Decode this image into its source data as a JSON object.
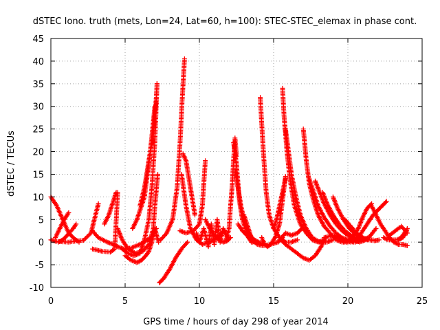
{
  "chart_data": {
    "type": "scatter",
    "title": "dSTEC Iono. truth (mets, Lon=24, Lat=60, h=100): STEC-STEC_elemax in phase cont.",
    "xlabel": "GPS time / hours of day 298 of year 2014",
    "ylabel": "dSTEC  / TECUs",
    "xlim": [
      0,
      25
    ],
    "ylim": [
      -10,
      45
    ],
    "xticks": [
      "0",
      "5",
      "10",
      "15",
      "20",
      "25"
    ],
    "yticks": [
      "-10",
      "-5",
      "0",
      "5",
      "10",
      "15",
      "20",
      "25",
      "30",
      "35",
      "40",
      "45"
    ],
    "grid": true,
    "marker": "+",
    "color": "#ff0000",
    "series": [
      {
        "x": [
          0.0,
          0.3,
          0.7,
          1.2,
          1.6,
          2.2,
          2.7,
          3.2
        ],
        "y": [
          0.5,
          0.2,
          0.1,
          0.0,
          0.2,
          0.4,
          2.0,
          8.5
        ]
      },
      {
        "x": [
          0.0,
          0.4,
          0.8,
          1.2,
          1.5,
          1.9
        ],
        "y": [
          10,
          8,
          5,
          2,
          1,
          0
        ]
      },
      {
        "x": [
          0.3,
          0.6,
          0.9,
          1.2
        ],
        "y": [
          1,
          3,
          5,
          6.5
        ]
      },
      {
        "x": [
          0.5,
          0.8,
          1.1,
          1.5,
          1.7
        ],
        "y": [
          0,
          0.5,
          1.5,
          3,
          4
        ]
      },
      {
        "x": [
          2.8,
          3.2,
          3.8,
          4.2,
          4.5,
          4.9,
          5.4,
          6.0,
          6.5,
          6.9,
          7.1
        ],
        "y": [
          2.5,
          1.0,
          0.0,
          -0.5,
          -1.0,
          -1.5,
          -1.3,
          -0.5,
          0.5,
          1.5,
          3.0
        ]
      },
      {
        "x": [
          2.8,
          3.4,
          4.0,
          4.3,
          4.5
        ],
        "y": [
          -1.5,
          -2.0,
          -2.2,
          -1.5,
          11.0
        ]
      },
      {
        "x": [
          3.6,
          3.9,
          4.1,
          4.3,
          4.4
        ],
        "y": [
          4,
          6,
          8,
          10,
          11
        ]
      },
      {
        "x": [
          4.5,
          4.8,
          5.2,
          5.7,
          6.2,
          6.6,
          6.9,
          7.0,
          7.2
        ],
        "y": [
          3.0,
          0.5,
          -1.5,
          -2.5,
          -2.0,
          -0.5,
          3.0,
          8.0,
          15.0
        ]
      },
      {
        "x": [
          4.8,
          5.2,
          5.6,
          6.0,
          6.3,
          6.6,
          6.8,
          7.0,
          7.15
        ],
        "y": [
          -1.5,
          -2.5,
          -3.0,
          -2.5,
          0.5,
          5.0,
          12.0,
          22.0,
          35.0
        ]
      },
      {
        "x": [
          5.0,
          5.4,
          5.8,
          6.1,
          6.4,
          6.6,
          6.8,
          7.0,
          7.25
        ],
        "y": [
          -3,
          -4,
          -4.5,
          -4,
          -3,
          -2,
          0,
          3,
          0
        ]
      },
      {
        "x": [
          5.5,
          5.8,
          6.0,
          6.3,
          6.5,
          6.7,
          6.85,
          7.0
        ],
        "y": [
          3,
          5,
          7,
          10,
          15,
          20,
          25,
          30
        ]
      },
      {
        "x": [
          6.0,
          6.3,
          6.5,
          6.7,
          6.9,
          7.0,
          7.1,
          7.15
        ],
        "y": [
          8,
          12,
          16,
          20,
          24,
          28,
          32,
          35
        ]
      },
      {
        "x": [
          7.3,
          7.6,
          8.0,
          8.4,
          8.8,
          9.2
        ],
        "y": [
          -9.0,
          -8.0,
          -6.0,
          -3.5,
          -1.5,
          0.0
        ]
      },
      {
        "x": [
          7.4,
          7.8,
          8.2,
          8.5,
          8.7,
          8.85,
          9.0
        ],
        "y": [
          0.5,
          2,
          5,
          12,
          22,
          32,
          40.5
        ]
      },
      {
        "x": [
          8.8,
          9.1,
          9.4,
          9.8,
          10.2,
          10.7,
          11.2,
          11.7
        ],
        "y": [
          15.0,
          8.0,
          3.0,
          0.5,
          -0.5,
          0.0,
          1.0,
          2.5
        ]
      },
      {
        "x": [
          8.7,
          9.1,
          9.6,
          10.0,
          10.2,
          10.4
        ],
        "y": [
          2.5,
          2.0,
          2.5,
          4.0,
          8.0,
          18.0
        ]
      },
      {
        "x": [
          8.9,
          9.1,
          9.3,
          9.5,
          9.7
        ],
        "y": [
          19.5,
          18,
          14,
          10,
          6
        ]
      },
      {
        "x": [
          9.8,
          10.0,
          10.3,
          10.6,
          10.8,
          11.0,
          11.2,
          11.4,
          11.6,
          11.9
        ],
        "y": [
          2,
          0,
          3,
          -1,
          4,
          -0.5,
          5,
          0,
          3,
          1
        ]
      },
      {
        "x": [
          10.4,
          10.7,
          11.0,
          11.3,
          11.6,
          11.9,
          12.1
        ],
        "y": [
          5.0,
          3.0,
          1.5,
          0.5,
          0.0,
          0.3,
          1.0
        ]
      },
      {
        "x": [
          11.8,
          12.0,
          12.1,
          12.2,
          12.3,
          12.4,
          12.5
        ],
        "y": [
          0.5,
          3.0,
          8.0,
          12.0,
          18.0,
          23.0,
          19.0
        ]
      },
      {
        "x": [
          12.3,
          12.4,
          12.5,
          12.6,
          12.7,
          12.9,
          13.1,
          13.3,
          13.5
        ],
        "y": [
          22.0,
          20.0,
          17.0,
          13.0,
          9.0,
          5.0,
          3.0,
          1.0,
          0.0
        ]
      },
      {
        "x": [
          12.4,
          12.6,
          12.8,
          13.0,
          13.2,
          13.4,
          13.7,
          14.0,
          14.3
        ],
        "y": [
          16.0,
          12.0,
          8.0,
          5.0,
          3.0,
          1.5,
          0.5,
          0.0,
          -0.5
        ]
      },
      {
        "x": [
          12.6,
          12.9,
          13.2,
          13.5,
          13.9,
          14.3,
          14.8,
          15.3,
          15.6
        ],
        "y": [
          4.0,
          2.5,
          1.5,
          0.5,
          -0.5,
          -0.8,
          -0.5,
          0.0,
          1.0
        ]
      },
      {
        "x": [
          13.0,
          13.2,
          13.4,
          13.6
        ],
        "y": [
          6,
          4,
          2,
          0
        ]
      },
      {
        "x": [
          14.1,
          14.2,
          14.35,
          14.5,
          14.7,
          15.0,
          15.4,
          15.8,
          16.2,
          16.6
        ],
        "y": [
          32.0,
          26.0,
          18.0,
          11.0,
          6.0,
          3.0,
          1.0,
          0.0,
          0.0,
          0.5
        ]
      },
      {
        "x": [
          14.2,
          14.4,
          14.6,
          14.8,
          15.1,
          15.4,
          15.8
        ],
        "y": [
          1.0,
          -0.5,
          -1.0,
          -0.5,
          1.0,
          4.0,
          14.5
        ]
      },
      {
        "x": [
          15.0,
          15.2,
          15.4,
          15.6,
          15.8
        ],
        "y": [
          3,
          5,
          8,
          11,
          14
        ]
      },
      {
        "x": [
          15.4,
          15.8,
          16.2,
          16.6,
          16.9
        ],
        "y": [
          0.5,
          2.0,
          1.5,
          2.0,
          3.0
        ]
      },
      {
        "x": [
          15.6,
          15.7,
          15.9,
          16.1,
          16.4,
          16.8,
          17.2,
          17.6,
          18.0,
          18.4
        ],
        "y": [
          34.0,
          28.0,
          20.0,
          14.0,
          8.0,
          4.0,
          2.0,
          0.5,
          0.0,
          0.5
        ]
      },
      {
        "x": [
          15.8,
          16.0,
          16.2,
          16.5,
          16.8,
          17.2,
          17.6,
          18.1,
          18.6,
          19.0
        ],
        "y": [
          25.0,
          20.0,
          15.0,
          10.0,
          6.0,
          3.0,
          1.0,
          0.0,
          0.0,
          0.5
        ]
      },
      {
        "x": [
          15.5,
          15.8,
          16.2,
          16.6,
          17.0,
          17.4,
          17.8,
          18.2,
          18.5
        ],
        "y": [
          0.5,
          -0.5,
          -1.5,
          -2.5,
          -3.5,
          -4.0,
          -3.0,
          -1.0,
          1.0
        ]
      },
      {
        "x": [
          17.0,
          17.2,
          17.4,
          17.7,
          18.0,
          18.4,
          18.8,
          19.2,
          19.6,
          20.0
        ],
        "y": [
          25.0,
          18.0,
          13.0,
          9.0,
          6.0,
          3.5,
          2.0,
          0.5,
          0.0,
          0.0
        ]
      },
      {
        "x": [
          17.4,
          17.7,
          18.0,
          18.4,
          18.8,
          19.2,
          19.6,
          20.0,
          20.4,
          20.8
        ],
        "y": [
          14.0,
          11.0,
          8.0,
          5.5,
          3.5,
          2.0,
          1.0,
          0.5,
          0.0,
          0.2
        ]
      },
      {
        "x": [
          17.8,
          18.1,
          18.4,
          18.8,
          19.2,
          19.6,
          20.0,
          20.4,
          20.8,
          21.2
        ],
        "y": [
          13.5,
          11.0,
          8.5,
          6.0,
          4.0,
          2.5,
          1.5,
          0.5,
          0.0,
          0.5
        ]
      },
      {
        "x": [
          18.3,
          18.6,
          19.0,
          19.4,
          19.8,
          20.2,
          20.6,
          21.0,
          21.4
        ],
        "y": [
          11.0,
          8.5,
          6.0,
          4.0,
          2.5,
          1.5,
          0.8,
          0.5,
          1.0
        ]
      },
      {
        "x": [
          19.0,
          19.3,
          19.7,
          20.1,
          20.5,
          20.9,
          21.3,
          21.7
        ],
        "y": [
          10.0,
          7.5,
          5.0,
          3.0,
          1.8,
          1.0,
          0.5,
          0.5
        ]
      },
      {
        "x": [
          19.8,
          20.2,
          20.6,
          21.0,
          21.4,
          21.8,
          22.1
        ],
        "y": [
          5.0,
          3.5,
          2.0,
          1.0,
          0.5,
          0.3,
          0.5
        ]
      },
      {
        "x": [
          18.4,
          19.0,
          19.6,
          20.2,
          20.8,
          21.4,
          21.9
        ],
        "y": [
          1.0,
          1.5,
          0.5,
          0.0,
          0.3,
          1.0,
          3.0
        ]
      },
      {
        "x": [
          19.5,
          19.9,
          20.3,
          20.7,
          21.0,
          21.3,
          21.6
        ],
        "y": [
          0.5,
          0.0,
          1.0,
          3.0,
          5.5,
          7.5,
          8.5
        ]
      },
      {
        "x": [
          20.5,
          20.8,
          21.1,
          21.4,
          21.7,
          22.0,
          22.3,
          22.6
        ],
        "y": [
          0.0,
          1.5,
          3.0,
          4.5,
          6.0,
          7.0,
          8.0,
          9.0
        ]
      },
      {
        "x": [
          21.6,
          21.9,
          22.2,
          22.5,
          22.8,
          23.1,
          23.4,
          23.7,
          24.0
        ],
        "y": [
          8.0,
          6.0,
          4.0,
          2.5,
          1.0,
          0.0,
          -0.5,
          -0.5,
          -0.8
        ]
      },
      {
        "x": [
          22.4,
          22.7,
          23.0,
          23.3,
          23.6,
          23.9
        ],
        "y": [
          1.0,
          0.5,
          0.5,
          0.5,
          1.0,
          2.5
        ]
      },
      {
        "x": [
          22.8,
          23.2,
          23.6,
          24.0
        ],
        "y": [
          1.5,
          2.5,
          3.5,
          2.0
        ]
      },
      {
        "x": [
          23.4,
          23.7,
          23.9,
          24.0
        ],
        "y": [
          0.5,
          1.0,
          2.0,
          3.0
        ]
      }
    ]
  }
}
